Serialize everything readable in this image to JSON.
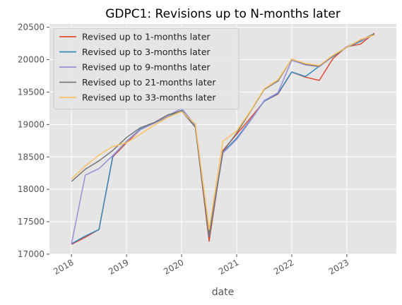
{
  "chart_data": {
    "type": "line",
    "title": "GDPC1: Revisions up to N-months later",
    "xlabel": "date",
    "ylabel": "",
    "grid": true,
    "legend_placement": "top-left",
    "xlim": [
      2017.6,
      2023.9
    ],
    "ylim": [
      17000,
      20550
    ],
    "yticks": [
      17000,
      17500,
      18000,
      18500,
      19000,
      19500,
      20000,
      20500
    ],
    "ytick_labels": [
      "17000",
      "17500",
      "18000",
      "18500",
      "19000",
      "19500",
      "20000",
      "20500"
    ],
    "xticks": [
      2018,
      2019,
      2020,
      2021,
      2022,
      2023
    ],
    "xtick_labels": [
      "2018",
      "2019",
      "2020",
      "2021",
      "2022",
      "2023"
    ],
    "x": [
      2018.0,
      2018.25,
      2018.5,
      2018.75,
      2019.0,
      2019.25,
      2019.5,
      2019.75,
      2020.0,
      2020.25,
      2020.5,
      2020.75,
      2021.0,
      2021.25,
      2021.5,
      2021.75,
      2022.0,
      2022.25,
      2022.5,
      2022.75,
      2023.0,
      2023.25,
      2023.5
    ],
    "x_display": [
      "2018-01-01",
      "2018-04-01",
      "2018-07-01",
      "2018-10-01",
      "2019-01-01",
      "2019-04-01",
      "2019-07-01",
      "2019-10-01",
      "2020-01-01",
      "2020-04-01",
      "2020-07-01",
      "2020-10-01",
      "2021-01-01",
      "2021-04-01",
      "2021-07-01",
      "2021-10-01",
      "2022-01-01",
      "2022-04-01",
      "2022-07-01",
      "2022-10-01",
      "2023-01-01",
      "2023-04-01",
      "2023-07-01"
    ],
    "series": [
      {
        "name": "Revised up to 1-months later",
        "color": "#E24A33",
        "values": [
          17150,
          17260,
          17380,
          18500,
          18720,
          18920,
          19020,
          19120,
          19210,
          18960,
          17200,
          18600,
          18850,
          19100,
          19360,
          19470,
          19810,
          19730,
          19680,
          20020,
          20200,
          20240,
          20410
        ]
      },
      {
        "name": "Revised up to 3-months later",
        "color": "#348ABD",
        "values": [
          17160,
          17280,
          17380,
          18510,
          18740,
          18930,
          19020,
          19120,
          19220,
          18960,
          17270,
          18570,
          18790,
          19070,
          19360,
          19480,
          19810,
          19740,
          19900,
          20050,
          20190,
          20280,
          20400
        ]
      },
      {
        "name": "Revised up to 9-months later",
        "color": "#988ED5",
        "values": [
          17160,
          18220,
          18320,
          18520,
          18740,
          18920,
          19020,
          19130,
          19250,
          18990,
          17310,
          18560,
          18770,
          19060,
          19370,
          19490,
          19990,
          19920,
          19890,
          20060,
          20200,
          20290,
          20390
        ]
      },
      {
        "name": "Revised up to 21-months later",
        "color": "#777777",
        "values": [
          18120,
          18310,
          18440,
          18600,
          18800,
          18950,
          19030,
          19150,
          19210,
          18960,
          17310,
          18580,
          18870,
          19200,
          19540,
          19670,
          20010,
          19930,
          19900,
          20060,
          20190,
          20300,
          20400
        ]
      },
      {
        "name": "Revised up to 33-months later",
        "color": "#FBC15E",
        "values": [
          18160,
          18360,
          18530,
          18660,
          18720,
          18850,
          18990,
          19110,
          19200,
          19010,
          17380,
          18740,
          18900,
          19210,
          19550,
          19690,
          20010,
          19940,
          19910,
          20070,
          20190,
          20310,
          20380
        ]
      }
    ]
  }
}
